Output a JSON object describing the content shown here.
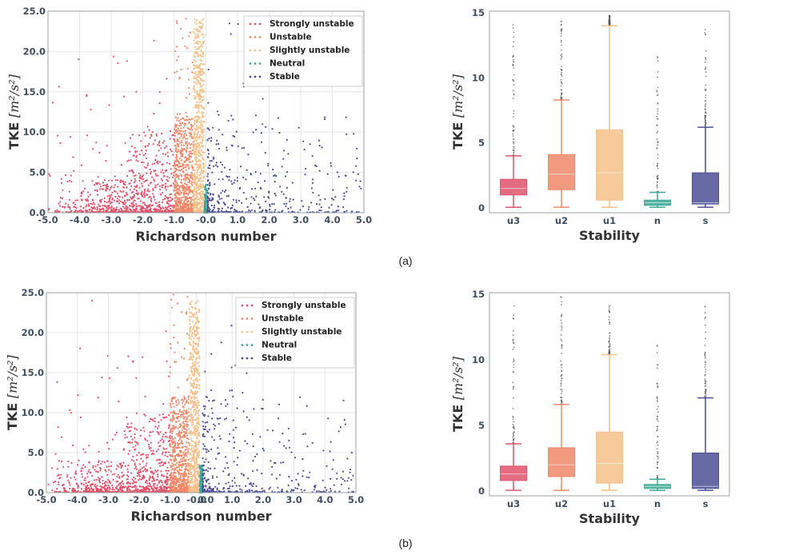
{
  "palette": {
    "u3": "#e0536b",
    "u2": "#ef8868",
    "u1": "#f6c089",
    "n": "#3aa897",
    "s": "#4c4f95"
  },
  "captions": [
    "(a)",
    "(b)"
  ],
  "chart_data": [
    {
      "id": "a-scatter",
      "type": "scatter",
      "xlabel": "Richardson number",
      "ylabel": "TKE",
      "ylabel_unit": "[m²/s²]",
      "xlim": [
        -5.0,
        5.0
      ],
      "ylim": [
        0.0,
        25.0
      ],
      "xticks": [
        "-5.0",
        "-4.0",
        "-3.0",
        "-2.0",
        "-1.0",
        "-0.0",
        "1.0",
        "2.0",
        "3.0",
        "4.0",
        "5.0"
      ],
      "yticks": [
        "0.0",
        "5.0",
        "10.0",
        "15.0",
        "20.0",
        "25.0"
      ],
      "legend_position": "top-right",
      "series": [
        {
          "name": "Strongly unstable",
          "key": "u3",
          "x_range": [
            -5.0,
            -1.0
          ]
        },
        {
          "name": "Unstable",
          "key": "u2",
          "x_range": [
            -1.0,
            -0.4
          ]
        },
        {
          "name": "Slightly unstable",
          "key": "u1",
          "x_range": [
            -0.4,
            -0.05
          ]
        },
        {
          "name": "Neutral",
          "key": "n",
          "x_range": [
            -0.05,
            0.05
          ]
        },
        {
          "name": "Stable",
          "key": "s",
          "x_range": [
            0.05,
            5.0
          ]
        }
      ]
    },
    {
      "id": "a-box",
      "type": "box",
      "xlabel": "Stability",
      "ylabel": "TKE",
      "ylabel_unit": "[m²/s²]",
      "ylim": [
        0,
        15
      ],
      "yticks": [
        "0",
        "5",
        "10",
        "15"
      ],
      "categories": [
        "u3",
        "u2",
        "u1",
        "n",
        "s"
      ],
      "boxes": [
        {
          "cat": "u3",
          "min": 0.05,
          "q1": 1.0,
          "median": 1.5,
          "q3": 2.2,
          "max": 4.0,
          "outlier_max": 14.2
        },
        {
          "cat": "u2",
          "min": 0.05,
          "q1": 1.4,
          "median": 2.6,
          "q3": 4.1,
          "max": 8.3,
          "outlier_max": 15.0
        },
        {
          "cat": "u1",
          "min": 0.05,
          "q1": 0.6,
          "median": 2.7,
          "q3": 6.0,
          "max": 14.0,
          "outlier_max": 14.8
        },
        {
          "cat": "n",
          "min": 0.05,
          "q1": 0.2,
          "median": 0.4,
          "q3": 0.6,
          "max": 1.2,
          "outlier_max": 11.7
        },
        {
          "cat": "s",
          "min": 0.05,
          "q1": 0.3,
          "median": 0.4,
          "q3": 2.7,
          "max": 6.2,
          "outlier_max": 14.0
        }
      ]
    },
    {
      "id": "b-scatter",
      "type": "scatter",
      "xlabel": "Richardson number",
      "ylabel": "TKE",
      "ylabel_unit": "[m²/s²]",
      "xlim": [
        -5.0,
        5.0
      ],
      "ylim": [
        0.0,
        25.0
      ],
      "xticks": [
        "-5.0",
        "-4.0",
        "-3.0",
        "-2.0",
        "-1.0",
        "-0.0",
        "0.0",
        "1.0",
        "2.0",
        "3.0",
        "4.0",
        "5.0"
      ],
      "xtick_values": [
        -5,
        -4,
        -3,
        -2,
        -1,
        -0.15,
        0.15,
        1,
        2,
        3,
        4,
        5
      ],
      "yticks": [
        "0.0",
        "5.0",
        "10.0",
        "15.0",
        "20.0",
        "25.0"
      ],
      "legend_position": "top-right",
      "series": [
        {
          "name": "Strongly unstable",
          "key": "u3",
          "x_range": [
            -5.0,
            -1.0
          ]
        },
        {
          "name": "Unstable",
          "key": "u2",
          "x_range": [
            -1.0,
            -0.4
          ]
        },
        {
          "name": "Slightly unstable",
          "key": "u1",
          "x_range": [
            -0.4,
            -0.05
          ]
        },
        {
          "name": "Neutral",
          "key": "n",
          "x_range": [
            -0.05,
            0.05
          ]
        },
        {
          "name": "Stable",
          "key": "s",
          "x_range": [
            0.05,
            5.0
          ]
        }
      ]
    },
    {
      "id": "b-box",
      "type": "box",
      "xlabel": "Stability",
      "ylabel": "TKE",
      "ylabel_unit": "[m²/s²]",
      "ylim": [
        0,
        15
      ],
      "yticks": [
        "0",
        "5",
        "10",
        "15"
      ],
      "categories": [
        "u3",
        "u2",
        "u1",
        "n",
        "s"
      ],
      "boxes": [
        {
          "cat": "u3",
          "min": 0.05,
          "q1": 0.8,
          "median": 1.3,
          "q3": 1.9,
          "max": 3.6,
          "outlier_max": 14.3
        },
        {
          "cat": "u2",
          "min": 0.05,
          "q1": 1.1,
          "median": 2.0,
          "q3": 3.3,
          "max": 6.6,
          "outlier_max": 15.0
        },
        {
          "cat": "u1",
          "min": 0.05,
          "q1": 0.6,
          "median": 2.1,
          "q3": 4.5,
          "max": 10.4,
          "outlier_max": 14.2
        },
        {
          "cat": "n",
          "min": 0.05,
          "q1": 0.2,
          "median": 0.35,
          "q3": 0.5,
          "max": 0.9,
          "outlier_max": 11.5
        },
        {
          "cat": "s",
          "min": 0.05,
          "q1": 0.2,
          "median": 0.35,
          "q3": 2.9,
          "max": 7.1,
          "outlier_max": 14.2
        }
      ]
    }
  ]
}
